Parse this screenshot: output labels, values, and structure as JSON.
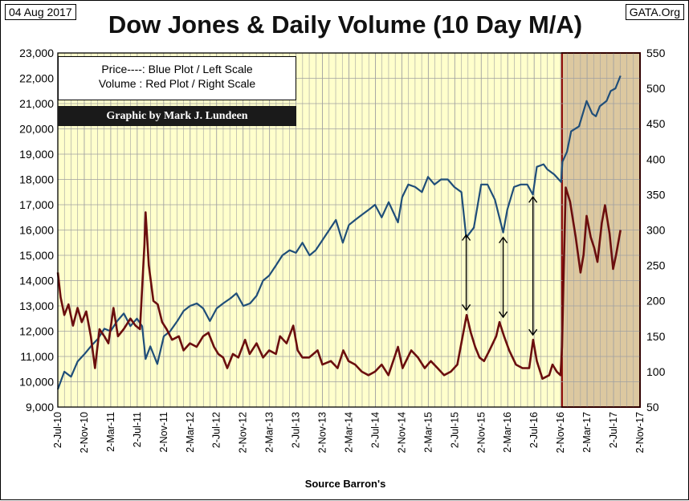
{
  "header": {
    "date": "04 Aug 2017",
    "site": "GATA.Org",
    "title": "Dow Jones & Daily Volume (10 Day M/A)"
  },
  "legend": {
    "line1": "Price----: Blue Plot / Left Scale",
    "line2": "Volume : Red Plot / Right Scale",
    "credit": "Graphic by Mark J. Lundeen"
  },
  "colors": {
    "plot_background": "#ffffcc",
    "shaded_region": "#dcc8a0",
    "shade_border": "#8b0000",
    "grid": "#a0a0a0",
    "price_line": "#1f4e79",
    "volume_line": "#6b0e0e"
  },
  "chart_data": {
    "type": "line",
    "title": "Dow Jones & Daily Volume (10 Day M/A)",
    "xlabel": "Source Barron's",
    "ylabel": "",
    "ylim": [
      9000,
      23000
    ],
    "y2lim": [
      50,
      550
    ],
    "grid": true,
    "legend_position": "top-left",
    "x_range": [
      "2010-07-02",
      "2017-11-02"
    ],
    "y_ticks": [
      "9,000",
      "10,000",
      "11,000",
      "12,000",
      "13,000",
      "14,000",
      "15,000",
      "16,000",
      "17,000",
      "18,000",
      "19,000",
      "20,000",
      "21,000",
      "22,000",
      "23,000"
    ],
    "y2_ticks": [
      "50",
      "100",
      "150",
      "200",
      "250",
      "300",
      "350",
      "400",
      "450",
      "500",
      "550"
    ],
    "x_ticks": [
      "2-Jul-10",
      "2-Nov-10",
      "2-Mar-11",
      "2-Jul-11",
      "2-Nov-11",
      "2-Mar-12",
      "2-Jul-12",
      "2-Nov-12",
      "2-Mar-13",
      "2-Jul-13",
      "2-Nov-13",
      "2-Mar-14",
      "2-Jul-14",
      "2-Nov-14",
      "2-Mar-15",
      "2-Jul-15",
      "2-Nov-15",
      "2-Mar-16",
      "2-Jul-16",
      "2-Nov-16",
      "2-Mar-17",
      "2-Jul-17",
      "2-Nov-17"
    ],
    "shaded_from": "2016-11-08",
    "series": [
      {
        "name": "Price----: Blue Plot / Left Scale",
        "axis": "left",
        "points": [
          [
            "2010-07-02",
            9700
          ],
          [
            "2010-08-01",
            10400
          ],
          [
            "2010-09-01",
            10200
          ],
          [
            "2010-10-01",
            10800
          ],
          [
            "2010-11-02",
            11100
          ],
          [
            "2010-12-01",
            11400
          ],
          [
            "2011-01-03",
            11700
          ],
          [
            "2011-02-01",
            12100
          ],
          [
            "2011-03-02",
            12000
          ],
          [
            "2011-04-01",
            12400
          ],
          [
            "2011-05-02",
            12700
          ],
          [
            "2011-06-01",
            12200
          ],
          [
            "2011-07-01",
            12500
          ],
          [
            "2011-07-25",
            12200
          ],
          [
            "2011-08-10",
            10900
          ],
          [
            "2011-09-01",
            11400
          ],
          [
            "2011-10-03",
            10700
          ],
          [
            "2011-11-02",
            11800
          ],
          [
            "2011-12-01",
            12000
          ],
          [
            "2012-01-03",
            12400
          ],
          [
            "2012-02-01",
            12800
          ],
          [
            "2012-03-02",
            13000
          ],
          [
            "2012-04-02",
            13100
          ],
          [
            "2012-05-01",
            12900
          ],
          [
            "2012-06-01",
            12400
          ],
          [
            "2012-07-02",
            12900
          ],
          [
            "2012-08-01",
            13100
          ],
          [
            "2012-09-04",
            13300
          ],
          [
            "2012-10-01",
            13500
          ],
          [
            "2012-11-02",
            13000
          ],
          [
            "2012-12-03",
            13100
          ],
          [
            "2013-01-02",
            13400
          ],
          [
            "2013-02-01",
            14000
          ],
          [
            "2013-03-01",
            14200
          ],
          [
            "2013-04-01",
            14600
          ],
          [
            "2013-05-01",
            15000
          ],
          [
            "2013-06-03",
            15200
          ],
          [
            "2013-07-02",
            15100
          ],
          [
            "2013-08-01",
            15500
          ],
          [
            "2013-09-03",
            15000
          ],
          [
            "2013-10-01",
            15200
          ],
          [
            "2013-11-01",
            15600
          ],
          [
            "2013-12-02",
            16000
          ],
          [
            "2014-01-02",
            16400
          ],
          [
            "2014-02-03",
            15500
          ],
          [
            "2014-03-03",
            16200
          ],
          [
            "2014-04-01",
            16400
          ],
          [
            "2014-05-01",
            16600
          ],
          [
            "2014-06-02",
            16800
          ],
          [
            "2014-07-01",
            17000
          ],
          [
            "2014-08-01",
            16500
          ],
          [
            "2014-09-02",
            17100
          ],
          [
            "2014-10-15",
            16300
          ],
          [
            "2014-11-03",
            17300
          ],
          [
            "2014-12-01",
            17800
          ],
          [
            "2015-01-02",
            17700
          ],
          [
            "2015-02-02",
            17500
          ],
          [
            "2015-03-02",
            18100
          ],
          [
            "2015-04-01",
            17800
          ],
          [
            "2015-05-01",
            18000
          ],
          [
            "2015-06-01",
            18000
          ],
          [
            "2015-07-01",
            17700
          ],
          [
            "2015-08-03",
            17500
          ],
          [
            "2015-08-25",
            15700
          ],
          [
            "2015-09-29",
            16100
          ],
          [
            "2015-11-02",
            17800
          ],
          [
            "2015-12-01",
            17800
          ],
          [
            "2016-01-04",
            17200
          ],
          [
            "2016-02-11",
            15900
          ],
          [
            "2016-03-01",
            16800
          ],
          [
            "2016-04-01",
            17700
          ],
          [
            "2016-05-02",
            17800
          ],
          [
            "2016-06-01",
            17800
          ],
          [
            "2016-06-27",
            17400
          ],
          [
            "2016-07-15",
            18500
          ],
          [
            "2016-08-15",
            18600
          ],
          [
            "2016-09-01",
            18400
          ],
          [
            "2016-10-03",
            18200
          ],
          [
            "2016-11-04",
            17900
          ],
          [
            "2016-11-10",
            18700
          ],
          [
            "2016-12-01",
            19100
          ],
          [
            "2016-12-20",
            19900
          ],
          [
            "2017-01-25",
            20100
          ],
          [
            "2017-03-01",
            21100
          ],
          [
            "2017-03-27",
            20600
          ],
          [
            "2017-04-13",
            20500
          ],
          [
            "2017-05-01",
            20900
          ],
          [
            "2017-06-01",
            21100
          ],
          [
            "2017-06-20",
            21500
          ],
          [
            "2017-07-12",
            21600
          ],
          [
            "2017-08-04",
            22100
          ]
        ]
      },
      {
        "name": "Volume : Red Plot / Right Scale",
        "axis": "right",
        "points": [
          [
            "2010-07-02",
            240
          ],
          [
            "2010-07-15",
            205
          ],
          [
            "2010-08-01",
            180
          ],
          [
            "2010-08-20",
            195
          ],
          [
            "2010-09-10",
            165
          ],
          [
            "2010-10-01",
            190
          ],
          [
            "2010-10-20",
            170
          ],
          [
            "2010-11-10",
            185
          ],
          [
            "2010-12-01",
            150
          ],
          [
            "2010-12-20",
            105
          ],
          [
            "2011-01-10",
            160
          ],
          [
            "2011-02-01",
            150
          ],
          [
            "2011-02-20",
            140
          ],
          [
            "2011-03-15",
            190
          ],
          [
            "2011-04-05",
            150
          ],
          [
            "2011-05-01",
            160
          ],
          [
            "2011-06-01",
            175
          ],
          [
            "2011-06-25",
            165
          ],
          [
            "2011-07-15",
            160
          ],
          [
            "2011-08-05",
            280
          ],
          [
            "2011-08-10",
            325
          ],
          [
            "2011-08-25",
            250
          ],
          [
            "2011-09-15",
            200
          ],
          [
            "2011-10-05",
            195
          ],
          [
            "2011-10-25",
            170
          ],
          [
            "2011-11-15",
            160
          ],
          [
            "2011-12-10",
            145
          ],
          [
            "2012-01-10",
            150
          ],
          [
            "2012-02-01",
            130
          ],
          [
            "2012-03-01",
            140
          ],
          [
            "2012-04-01",
            135
          ],
          [
            "2012-05-01",
            150
          ],
          [
            "2012-05-25",
            155
          ],
          [
            "2012-06-20",
            135
          ],
          [
            "2012-07-10",
            125
          ],
          [
            "2012-08-01",
            120
          ],
          [
            "2012-08-20",
            105
          ],
          [
            "2012-09-15",
            125
          ],
          [
            "2012-10-10",
            120
          ],
          [
            "2012-11-10",
            145
          ],
          [
            "2012-12-01",
            125
          ],
          [
            "2013-01-02",
            140
          ],
          [
            "2013-02-01",
            120
          ],
          [
            "2013-03-01",
            130
          ],
          [
            "2013-04-01",
            125
          ],
          [
            "2013-04-20",
            150
          ],
          [
            "2013-05-20",
            140
          ],
          [
            "2013-06-20",
            165
          ],
          [
            "2013-07-10",
            130
          ],
          [
            "2013-08-01",
            120
          ],
          [
            "2013-09-01",
            120
          ],
          [
            "2013-10-10",
            130
          ],
          [
            "2013-11-01",
            110
          ],
          [
            "2013-12-10",
            115
          ],
          [
            "2014-01-10",
            105
          ],
          [
            "2014-02-05",
            130
          ],
          [
            "2014-03-01",
            115
          ],
          [
            "2014-04-01",
            110
          ],
          [
            "2014-05-01",
            100
          ],
          [
            "2014-06-01",
            95
          ],
          [
            "2014-07-01",
            100
          ],
          [
            "2014-08-01",
            110
          ],
          [
            "2014-09-01",
            95
          ],
          [
            "2014-10-15",
            135
          ],
          [
            "2014-11-05",
            105
          ],
          [
            "2014-12-15",
            130
          ],
          [
            "2015-01-15",
            120
          ],
          [
            "2015-02-15",
            105
          ],
          [
            "2015-03-15",
            115
          ],
          [
            "2015-04-15",
            105
          ],
          [
            "2015-05-15",
            95
          ],
          [
            "2015-06-15",
            100
          ],
          [
            "2015-07-15",
            110
          ],
          [
            "2015-08-27",
            180
          ],
          [
            "2015-09-15",
            155
          ],
          [
            "2015-10-05",
            135
          ],
          [
            "2015-10-25",
            120
          ],
          [
            "2015-11-15",
            115
          ],
          [
            "2015-12-10",
            130
          ],
          [
            "2016-01-10",
            150
          ],
          [
            "2016-01-25",
            170
          ],
          [
            "2016-02-15",
            150
          ],
          [
            "2016-03-10",
            130
          ],
          [
            "2016-04-10",
            110
          ],
          [
            "2016-05-10",
            105
          ],
          [
            "2016-06-10",
            105
          ],
          [
            "2016-06-28",
            145
          ],
          [
            "2016-07-15",
            115
          ],
          [
            "2016-08-10",
            90
          ],
          [
            "2016-09-10",
            95
          ],
          [
            "2016-09-25",
            110
          ],
          [
            "2016-10-15",
            100
          ],
          [
            "2016-11-01",
            95
          ],
          [
            "2016-11-08",
            135
          ],
          [
            "2016-11-15",
            235
          ],
          [
            "2016-11-25",
            360
          ],
          [
            "2016-12-15",
            340
          ],
          [
            "2017-01-10",
            290
          ],
          [
            "2017-02-01",
            240
          ],
          [
            "2017-02-15",
            265
          ],
          [
            "2017-03-01",
            320
          ],
          [
            "2017-03-20",
            290
          ],
          [
            "2017-04-05",
            275
          ],
          [
            "2017-04-20",
            255
          ],
          [
            "2017-05-10",
            310
          ],
          [
            "2017-05-25",
            335
          ],
          [
            "2017-06-15",
            295
          ],
          [
            "2017-07-01",
            245
          ],
          [
            "2017-07-15",
            265
          ],
          [
            "2017-08-04",
            300
          ]
        ]
      }
    ],
    "annotations": [
      {
        "type": "arrow",
        "x": "2015-08-25",
        "from_value": 16000,
        "to_volume": 180
      },
      {
        "type": "arrow",
        "x": "2016-02-11",
        "from_value": 15900,
        "to_volume": 170
      },
      {
        "type": "arrow",
        "x": "2016-06-27",
        "from_value": 17500,
        "to_volume": 145
      }
    ]
  },
  "footer": {
    "source": "Source Barron's"
  }
}
